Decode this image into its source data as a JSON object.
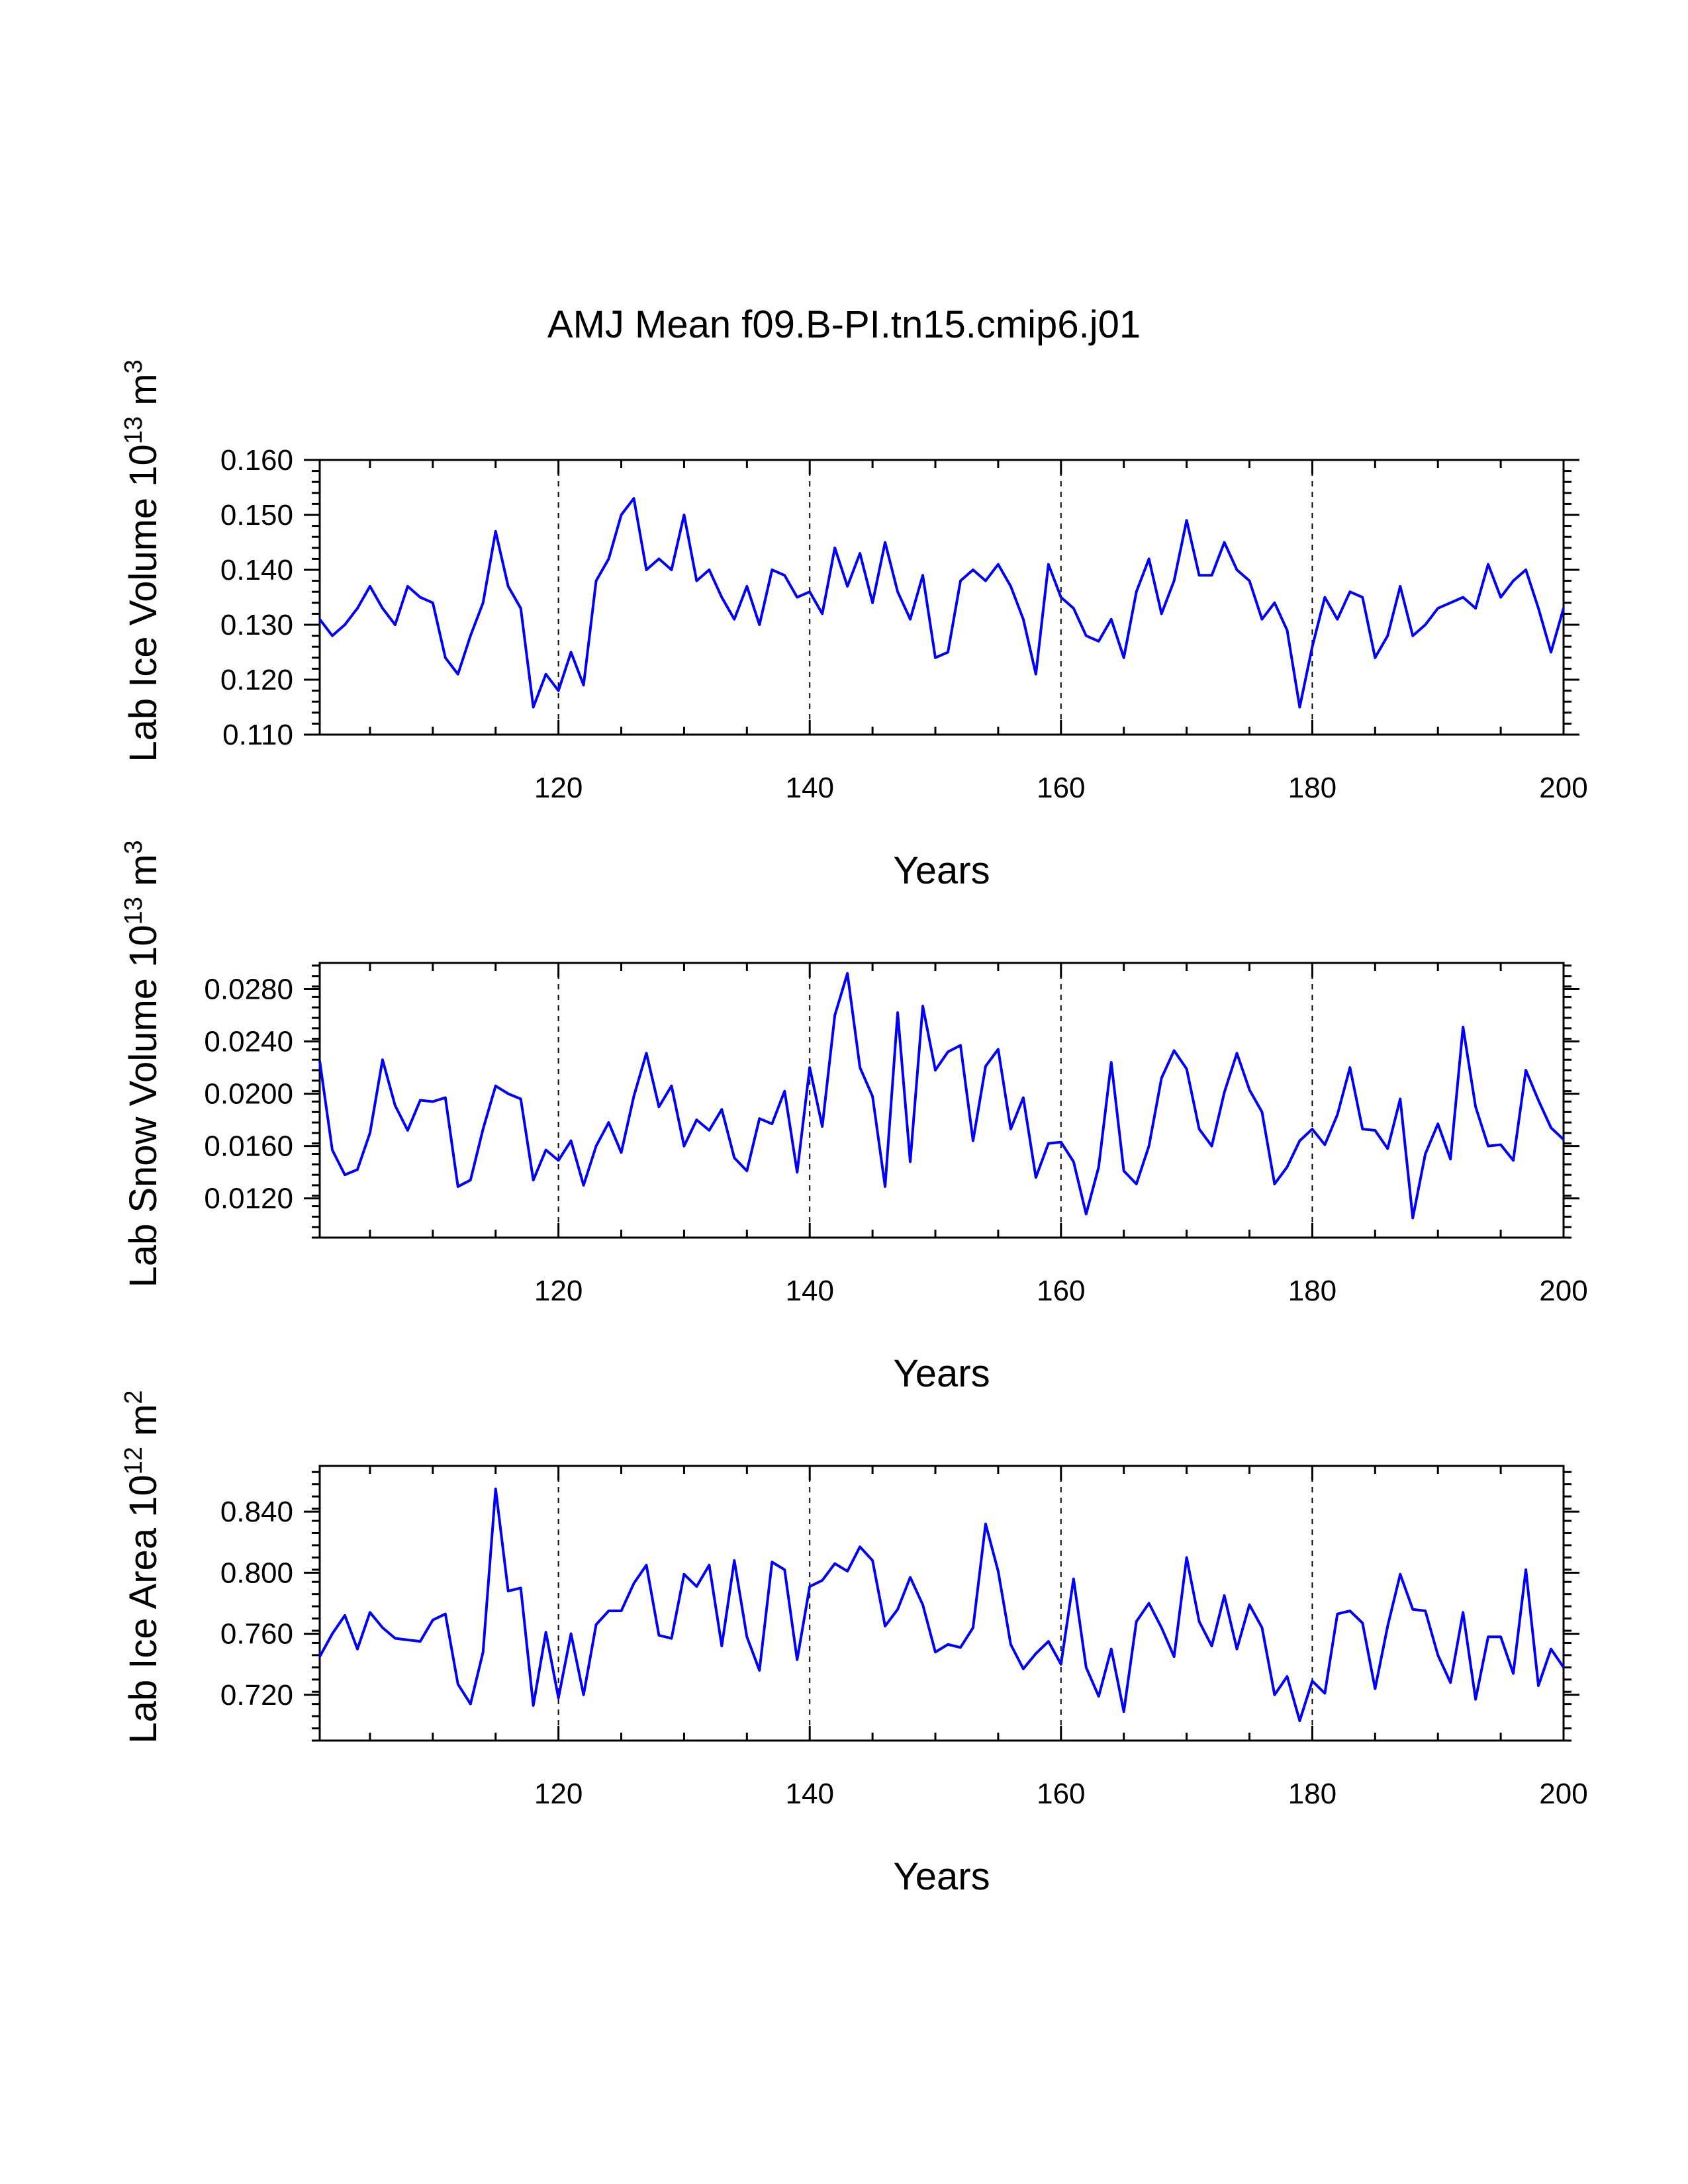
{
  "title": "AMJ Mean f09.B-PI.tn15.cmip6.j01",
  "colors": {
    "line": "#0000ff",
    "axis": "#000000"
  },
  "chart_data": [
    {
      "type": "line",
      "title": "",
      "xlabel": "Years",
      "ylabel": "Lab Ice Volume 10",
      "ylabel_exp": "13",
      "ylabel_unit": " m",
      "ylabel_unit_exp": "3",
      "xlim": [
        101,
        200
      ],
      "ylim": [
        0.11,
        0.16
      ],
      "xticks": [
        120,
        140,
        160,
        180,
        200
      ],
      "yticks": [
        0.11,
        0.12,
        0.13,
        0.14,
        0.15,
        0.16
      ],
      "ytick_labels": [
        "0.110",
        "0.120",
        "0.130",
        "0.140",
        "0.150",
        "0.160"
      ],
      "grid_x": [
        120,
        140,
        160,
        180
      ],
      "series": [
        {
          "name": "Lab Ice Volume",
          "x_start": 101,
          "values": [
            0.131,
            0.128,
            0.13,
            0.133,
            0.137,
            0.133,
            0.13,
            0.137,
            0.135,
            0.134,
            0.124,
            0.121,
            0.128,
            0.134,
            0.147,
            0.137,
            0.133,
            0.115,
            0.121,
            0.118,
            0.125,
            0.119,
            0.138,
            0.142,
            0.15,
            0.153,
            0.14,
            0.142,
            0.14,
            0.15,
            0.138,
            0.14,
            0.135,
            0.131,
            0.137,
            0.13,
            0.14,
            0.139,
            0.135,
            0.136,
            0.132,
            0.144,
            0.137,
            0.143,
            0.134,
            0.145,
            0.136,
            0.131,
            0.139,
            0.124,
            0.125,
            0.138,
            0.14,
            0.138,
            0.141,
            0.137,
            0.131,
            0.121,
            0.141,
            0.135,
            0.133,
            0.128,
            0.127,
            0.131,
            0.124,
            0.136,
            0.142,
            0.132,
            0.138,
            0.149,
            0.139,
            0.139,
            0.145,
            0.14,
            0.138,
            0.131,
            0.134,
            0.129,
            0.115,
            0.126,
            0.135,
            0.131,
            0.136,
            0.135,
            0.124,
            0.128,
            0.137,
            0.128,
            0.13,
            0.133,
            0.134,
            0.135,
            0.133,
            0.141,
            0.135,
            0.138,
            0.14,
            0.133,
            0.125,
            0.133
          ]
        }
      ]
    },
    {
      "type": "line",
      "title": "",
      "xlabel": "Years",
      "ylabel": "Lab Snow Volume 10",
      "ylabel_exp": "13",
      "ylabel_unit": " m",
      "ylabel_unit_exp": "3",
      "xlim": [
        101,
        200
      ],
      "ylim": [
        0.009,
        0.03
      ],
      "xticks": [
        120,
        140,
        160,
        180,
        200
      ],
      "yticks": [
        0.012,
        0.016,
        0.02,
        0.024,
        0.028
      ],
      "ytick_labels": [
        "0.0120",
        "0.0160",
        "0.0200",
        "0.0240",
        "0.0280"
      ],
      "grid_x": [
        120,
        140,
        160,
        180
      ],
      "series": [
        {
          "name": "Lab Snow Volume",
          "x_start": 101,
          "values": [
            0.0225,
            0.0157,
            0.0138,
            0.0142,
            0.017,
            0.0226,
            0.0191,
            0.0172,
            0.0195,
            0.0194,
            0.0197,
            0.0129,
            0.0134,
            0.0173,
            0.0206,
            0.02,
            0.0196,
            0.0134,
            0.0157,
            0.0149,
            0.0164,
            0.013,
            0.016,
            0.0178,
            0.0155,
            0.0198,
            0.0231,
            0.019,
            0.0206,
            0.016,
            0.018,
            0.0172,
            0.0188,
            0.0151,
            0.0141,
            0.0181,
            0.0177,
            0.0202,
            0.014,
            0.022,
            0.0175,
            0.026,
            0.0292,
            0.022,
            0.0198,
            0.0129,
            0.0262,
            0.0148,
            0.0267,
            0.0218,
            0.0232,
            0.0237,
            0.0164,
            0.0221,
            0.0234,
            0.0173,
            0.0197,
            0.0136,
            0.0162,
            0.0163,
            0.0148,
            0.0108,
            0.0144,
            0.0224,
            0.0141,
            0.0131,
            0.016,
            0.0212,
            0.0233,
            0.0219,
            0.0173,
            0.016,
            0.0201,
            0.0231,
            0.0203,
            0.0186,
            0.0131,
            0.0144,
            0.0164,
            0.0173,
            0.0161,
            0.0184,
            0.022,
            0.0173,
            0.0172,
            0.0158,
            0.0196,
            0.0105,
            0.0154,
            0.0177,
            0.015,
            0.0251,
            0.019,
            0.016,
            0.0161,
            0.0149,
            0.0218,
            0.0195,
            0.0174,
            0.0165
          ]
        }
      ]
    },
    {
      "type": "line",
      "title": "",
      "xlabel": "Years",
      "ylabel": "Lab Ice Area 10",
      "ylabel_exp": "12",
      "ylabel_unit": " m",
      "ylabel_unit_exp": "2",
      "xlim": [
        101,
        200
      ],
      "ylim": [
        0.69,
        0.87
      ],
      "xticks": [
        120,
        140,
        160,
        180,
        200
      ],
      "yticks": [
        0.72,
        0.76,
        0.8,
        0.84
      ],
      "ytick_labels": [
        "0.720",
        "0.760",
        "0.800",
        "0.840"
      ],
      "grid_x": [
        120,
        140,
        160,
        180
      ],
      "series": [
        {
          "name": "Lab Ice Area",
          "x_start": 101,
          "values": [
            0.745,
            0.76,
            0.772,
            0.75,
            0.774,
            0.764,
            0.757,
            0.756,
            0.755,
            0.769,
            0.773,
            0.727,
            0.714,
            0.748,
            0.855,
            0.788,
            0.79,
            0.713,
            0.761,
            0.718,
            0.76,
            0.72,
            0.766,
            0.775,
            0.775,
            0.793,
            0.805,
            0.759,
            0.757,
            0.799,
            0.791,
            0.805,
            0.752,
            0.808,
            0.758,
            0.736,
            0.807,
            0.802,
            0.743,
            0.791,
            0.795,
            0.806,
            0.801,
            0.817,
            0.808,
            0.765,
            0.776,
            0.797,
            0.779,
            0.748,
            0.753,
            0.751,
            0.764,
            0.832,
            0.801,
            0.753,
            0.737,
            0.747,
            0.755,
            0.74,
            0.796,
            0.738,
            0.719,
            0.75,
            0.709,
            0.768,
            0.78,
            0.764,
            0.745,
            0.81,
            0.768,
            0.752,
            0.785,
            0.75,
            0.779,
            0.764,
            0.72,
            0.732,
            0.703,
            0.729,
            0.721,
            0.773,
            0.775,
            0.767,
            0.724,
            0.765,
            0.799,
            0.776,
            0.775,
            0.746,
            0.728,
            0.774,
            0.717,
            0.758,
            0.758,
            0.734,
            0.802,
            0.726,
            0.75,
            0.738
          ]
        }
      ]
    }
  ]
}
